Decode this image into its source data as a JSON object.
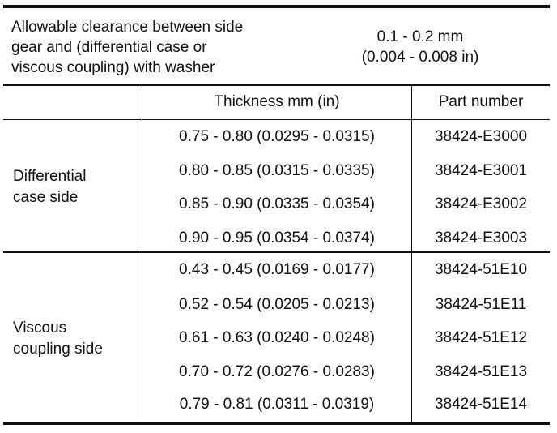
{
  "clearance": {
    "label": "Allowable clearance between side\ngear and (differential case or\nviscous coupling) with washer",
    "value": "0.1 - 0.2 mm\n(0.004 - 0.008 in)"
  },
  "table": {
    "columns": [
      "",
      "Thickness mm (in)",
      "Part number"
    ],
    "groups": [
      {
        "label": "Differential\ncase side",
        "rows": [
          {
            "thickness": "0.75 - 0.80 (0.0295 - 0.0315)",
            "part": "38424-E3000"
          },
          {
            "thickness": "0.80 - 0.85 (0.0315 - 0.0335)",
            "part": "38424-E3001"
          },
          {
            "thickness": "0.85 - 0.90 (0.0335 - 0.0354)",
            "part": "38424-E3002"
          },
          {
            "thickness": "0.90 - 0.95 (0.0354 - 0.0374)",
            "part": "38424-E3003"
          }
        ]
      },
      {
        "label": "Viscous\ncoupling side",
        "rows": [
          {
            "thickness": "0.43 - 0.45 (0.0169 - 0.0177)",
            "part": "38424-51E10"
          },
          {
            "thickness": "0.52 - 0.54 (0.0205 - 0.0213)",
            "part": "38424-51E11"
          },
          {
            "thickness": "0.61 - 0.63 (0.0240 - 0.0248)",
            "part": "38424-51E12"
          },
          {
            "thickness": "0.70 - 0.72 (0.0276 - 0.0283)",
            "part": "38424-51E13"
          },
          {
            "thickness": "0.79 - 0.81 (0.0311 - 0.0319)",
            "part": "38424-51E14"
          }
        ]
      }
    ]
  }
}
